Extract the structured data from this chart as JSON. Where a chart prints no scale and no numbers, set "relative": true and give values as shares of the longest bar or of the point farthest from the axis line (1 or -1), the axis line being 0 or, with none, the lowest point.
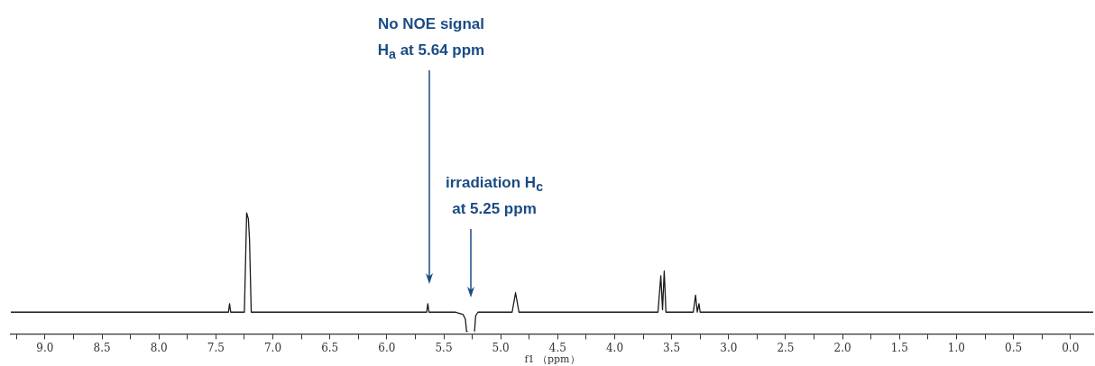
{
  "chart_data": {
    "type": "line",
    "relative": true,
    "xlabel": "f1 （ppm）",
    "xlim": [
      9.3,
      -0.2
    ],
    "xticks": [
      {
        "value": 9.25,
        "label": null
      },
      {
        "value": 9,
        "label": "9.0"
      },
      {
        "value": 8.75,
        "label": null
      },
      {
        "value": 8.5,
        "label": "8.5"
      },
      {
        "value": 8.25,
        "label": null
      },
      {
        "value": 8,
        "label": "8.0"
      },
      {
        "value": 7.75,
        "label": null
      },
      {
        "value": 7.5,
        "label": "7.5"
      },
      {
        "value": 7.25,
        "label": null
      },
      {
        "value": 7,
        "label": "7.0"
      },
      {
        "value": 6.75,
        "label": null
      },
      {
        "value": 6.5,
        "label": "6.5"
      },
      {
        "value": 6.25,
        "label": null
      },
      {
        "value": 6,
        "label": "6.0"
      },
      {
        "value": 5.75,
        "label": null
      },
      {
        "value": 5.5,
        "label": "5.5"
      },
      {
        "value": 5.25,
        "label": null
      },
      {
        "value": 5,
        "label": "5.0"
      },
      {
        "value": 4.75,
        "label": null
      },
      {
        "value": 4.5,
        "label": "4.5"
      },
      {
        "value": 4.25,
        "label": null
      },
      {
        "value": 4,
        "label": "4.0"
      },
      {
        "value": 3.75,
        "label": null
      },
      {
        "value": 3.5,
        "label": "3.5"
      },
      {
        "value": 3.25,
        "label": null
      },
      {
        "value": 3,
        "label": "3.0"
      },
      {
        "value": 2.75,
        "label": null
      },
      {
        "value": 2.5,
        "label": "2.5"
      },
      {
        "value": 2.25,
        "label": null
      },
      {
        "value": 2,
        "label": "2.0"
      },
      {
        "value": 1.75,
        "label": null
      },
      {
        "value": 1.5,
        "label": "1.5"
      },
      {
        "value": 1.25,
        "label": null
      },
      {
        "value": 1,
        "label": "1.0"
      },
      {
        "value": 0.75,
        "label": null
      },
      {
        "value": 0.5,
        "label": "0.5"
      },
      {
        "value": 0.25,
        "label": null
      },
      {
        "value": 0,
        "label": "0.0"
      }
    ],
    "series": [
      {
        "color": "#1a1a1a",
        "x": [
          9.3,
          8.8,
          8.3,
          7.8,
          7.45,
          7.39,
          7.38,
          7.37,
          7.25,
          7.23,
          7.215,
          7.205,
          7.19,
          6.8,
          6.3,
          5.9,
          5.65,
          5.64,
          5.63,
          5.4,
          5.33,
          5.31,
          5.3,
          5.29,
          5.26,
          5.23,
          5.22,
          5.2,
          5.0,
          4.9,
          4.87,
          4.84,
          4.5,
          4.0,
          3.62,
          3.595,
          3.58,
          3.565,
          3.55,
          3.31,
          3.29,
          3.275,
          3.26,
          3.25,
          2.5,
          2.0,
          1.5,
          1.0,
          0.5,
          0,
          -0.2
        ],
        "values": [
          0.18,
          0.18,
          0.18,
          0.18,
          0.18,
          0.18,
          0.25,
          0.18,
          0.18,
          1.0,
          0.95,
          0.78,
          0.18,
          0.18,
          0.18,
          0.18,
          0.18,
          0.25,
          0.18,
          0.18,
          0.16,
          0.12,
          0.02,
          0.02,
          null,
          0.02,
          0.15,
          0.18,
          0.18,
          0.18,
          0.34,
          0.18,
          0.18,
          0.18,
          0.18,
          0.48,
          0.2,
          0.52,
          0.18,
          0.18,
          0.32,
          0.18,
          0.25,
          0.18,
          0.18,
          0.18,
          0.18,
          0.18,
          0.18,
          0.18,
          0.18
        ]
      }
    ],
    "annotations": [
      "No NOE signal\nH$_{a}$ at 5.64 ppm",
      "irradiation H$_{c}$\nat 5.25 ppm"
    ]
  }
}
